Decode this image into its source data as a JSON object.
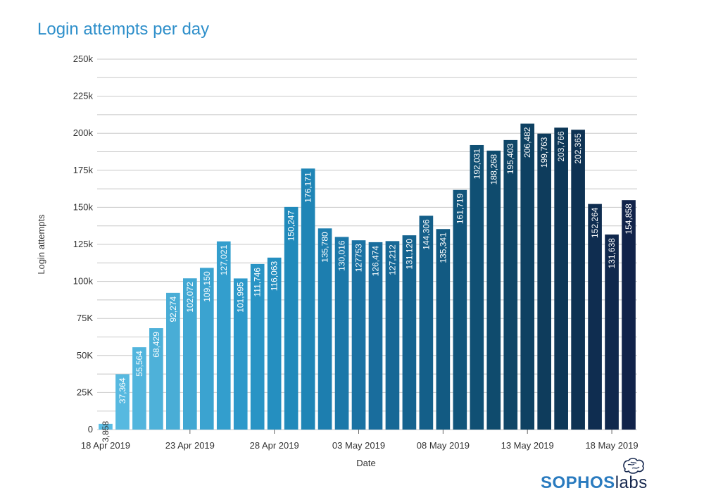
{
  "header": {
    "title": "Login attempts per day"
  },
  "chart_data": {
    "type": "bar",
    "title": "Login attempts per day",
    "xlabel": "Date",
    "ylabel": "Login attempts",
    "ylim": [
      0,
      250000
    ],
    "yticks": [
      {
        "value": 0,
        "label": "0"
      },
      {
        "value": 25000,
        "label": "25K"
      },
      {
        "value": 50000,
        "label": "50K"
      },
      {
        "value": 75000,
        "label": "75K"
      },
      {
        "value": 100000,
        "label": "100k"
      },
      {
        "value": 125000,
        "label": "125k"
      },
      {
        "value": 150000,
        "label": "150k"
      },
      {
        "value": 175000,
        "label": "175k"
      },
      {
        "value": 200000,
        "label": "200k"
      },
      {
        "value": 225000,
        "label": "225k"
      },
      {
        "value": 250000,
        "label": "250k"
      }
    ],
    "grid": true,
    "categories": [
      "18 Apr 2019",
      "19 Apr 2019",
      "20 Apr 2019",
      "21 Apr 2019",
      "22 Apr 2019",
      "23 Apr 2019",
      "24 Apr 2019",
      "25 Apr 2019",
      "26 Apr 2019",
      "27 Apr 2019",
      "28 Apr 2019",
      "29 Apr 2019",
      "30 Apr 2019",
      "01 May 2019",
      "02 May 2019",
      "03 May 2019",
      "04 May 2019",
      "05 May 2019",
      "06 May 2019",
      "07 May 2019",
      "08 May 2019",
      "09 May 2019",
      "10 May 2019",
      "11 May 2019",
      "12 May 2019",
      "13 May 2019",
      "14 May 2019",
      "15 May 2019",
      "16 May 2019",
      "17 May 2019",
      "18 May 2019",
      "19 May 2019"
    ],
    "values": [
      3858,
      37364,
      55564,
      68429,
      92274,
      102072,
      109150,
      127021,
      101995,
      111746,
      116063,
      150247,
      176171,
      135780,
      130016,
      127753,
      126474,
      127212,
      131120,
      144306,
      135341,
      161719,
      192031,
      188268,
      195403,
      206482,
      199763,
      203766,
      202365,
      152264,
      131638,
      154858
    ],
    "value_labels": [
      "3,858",
      "37,364",
      "55,564",
      "68,429",
      "92,274",
      "102,072",
      "109,150",
      "127,021",
      "101,995",
      "111,746",
      "116,063",
      "150,247",
      "176,171",
      "135,780",
      "130,016",
      "127753",
      "126,474",
      "127,212",
      "131,120",
      "144,306",
      "135,341",
      "161,719",
      "192,031",
      "188,268",
      "195,403",
      "206,482",
      "199,763",
      "203,766",
      "202,365",
      "152,264",
      "131,638",
      "154,858"
    ],
    "x_tick_labels": [
      {
        "index": 0,
        "label": "18 Apr 2019"
      },
      {
        "index": 5,
        "label": "23 Apr 2019"
      },
      {
        "index": 10,
        "label": "28 Apr 2019"
      },
      {
        "index": 15,
        "label": "03 May 2019"
      },
      {
        "index": 20,
        "label": "08 May 2019"
      },
      {
        "index": 25,
        "label": "13 May 2019"
      },
      {
        "index": 30,
        "label": "18 May 2019"
      }
    ],
    "colors": [
      "#5bbde4",
      "#4aaed6",
      "#2e9acb",
      "#1f87b8",
      "#1a6fa0",
      "#135d86",
      "#0f4a6b",
      "#0d3656",
      "#11234a"
    ]
  },
  "logo": {
    "part1": "SOPHOS",
    "part2": "labs"
  }
}
